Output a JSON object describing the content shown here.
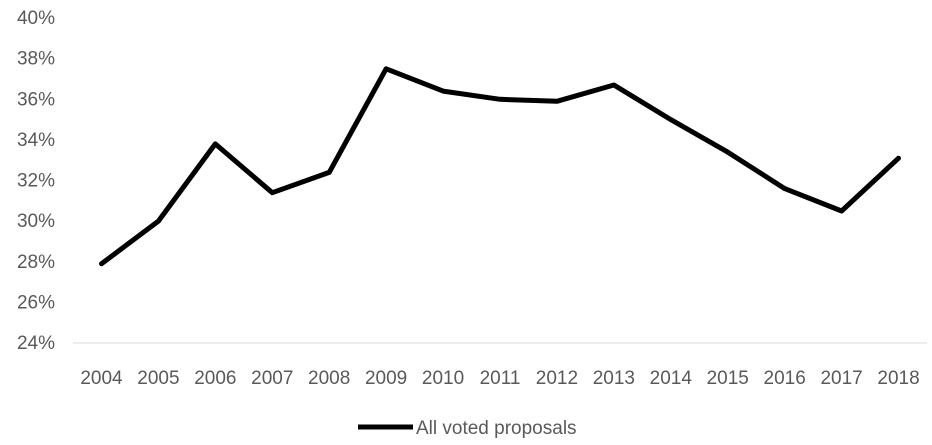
{
  "chart_data": {
    "type": "line",
    "categories": [
      "2004",
      "2005",
      "2006",
      "2007",
      "2008",
      "2009",
      "2010",
      "2011",
      "2012",
      "2013",
      "2014",
      "2015",
      "2016",
      "2017",
      "2018"
    ],
    "series": [
      {
        "name": "All voted proposals",
        "color": "#000000",
        "values": [
          0.279,
          0.3,
          0.338,
          0.314,
          0.324,
          0.375,
          0.364,
          0.36,
          0.359,
          0.367,
          0.35,
          0.334,
          0.316,
          0.305,
          0.331
        ]
      }
    ],
    "ylim": [
      0.24,
      0.4
    ],
    "yticks": [
      0.24,
      0.26,
      0.28,
      0.3,
      0.32,
      0.34,
      0.36,
      0.38,
      0.4
    ],
    "ytick_labels": [
      "24%",
      "26%",
      "28%",
      "30%",
      "32%",
      "34%",
      "36%",
      "38%",
      "40%"
    ],
    "y_format": "percent",
    "grid": false,
    "legend": {
      "position": "bottom",
      "entries": [
        "All voted proposals"
      ]
    },
    "title": "",
    "xlabel": "",
    "ylabel": ""
  }
}
